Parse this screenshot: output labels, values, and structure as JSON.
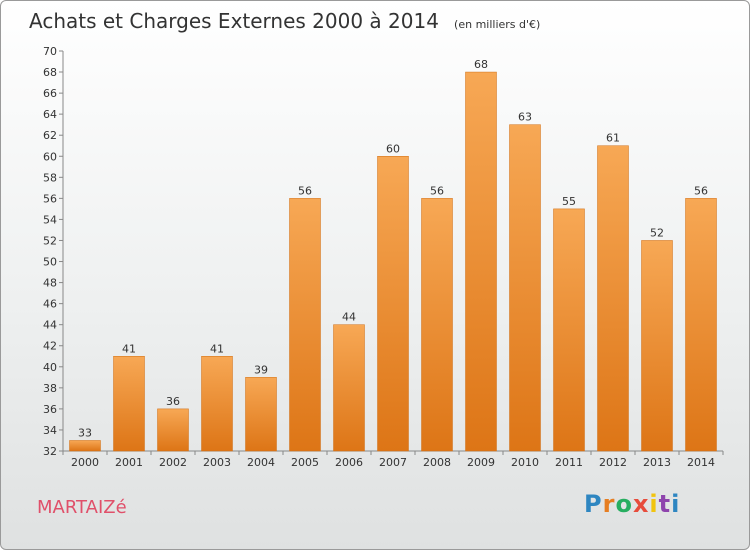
{
  "header": {
    "title": "Achats et Charges Externes 2000 à 2014",
    "subtitle": "(en milliers d'€)"
  },
  "footer": {
    "commune": "MARTAIZé",
    "logo": "Proxiti",
    "logo_colors": [
      "#2e86c1",
      "#e67e22",
      "#27ae60",
      "#e74c3c",
      "#f1c40f",
      "#8e44ad",
      "#2e86c1"
    ]
  },
  "chart_data": {
    "type": "bar",
    "categories": [
      "2000",
      "2001",
      "2002",
      "2003",
      "2004",
      "2005",
      "2006",
      "2007",
      "2008",
      "2009",
      "2010",
      "2011",
      "2012",
      "2013",
      "2014"
    ],
    "values": [
      33,
      41,
      36,
      41,
      39,
      56,
      44,
      60,
      56,
      68,
      63,
      55,
      61,
      52,
      56
    ],
    "title": "Achats et Charges Externes 2000 à 2014",
    "xlabel": "",
    "ylabel": "",
    "ylim": [
      32,
      70
    ],
    "ytick_step": 2,
    "grid": false,
    "bar_color": "#f0902d",
    "bar_color_light": "#f7a855",
    "bar_color_dark": "#dd7516",
    "axis_color": "#888888"
  }
}
